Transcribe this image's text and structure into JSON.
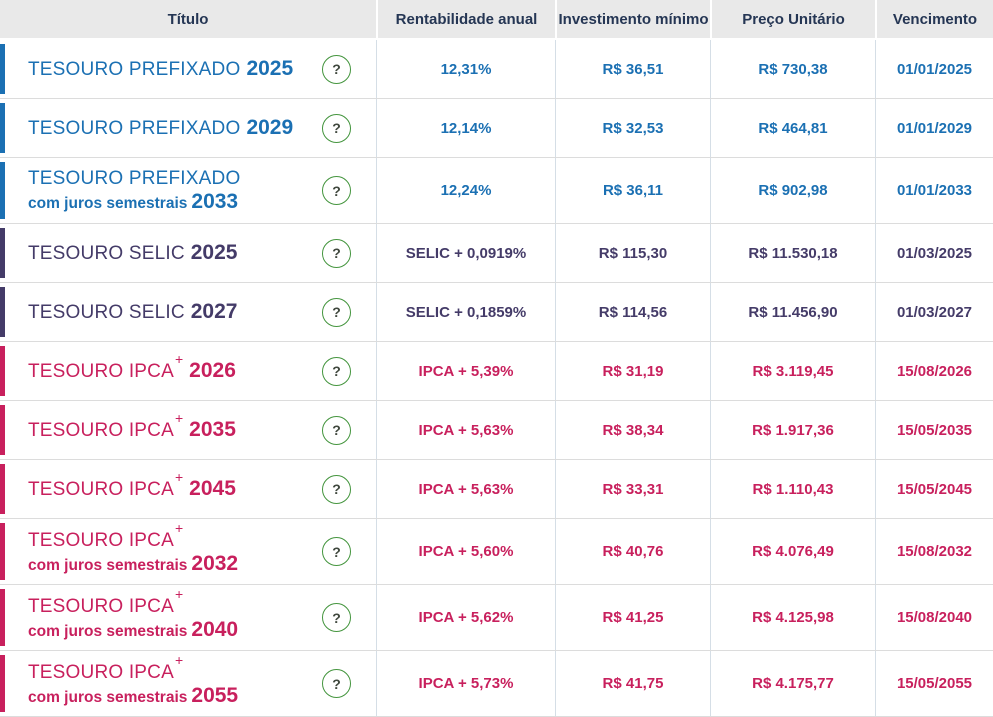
{
  "table": {
    "columns": [
      {
        "label": "Título"
      },
      {
        "label": "Rentabilidade anual"
      },
      {
        "label": "Investimento mínimo"
      },
      {
        "label": "Preço Unitário"
      },
      {
        "label": "Vencimento"
      }
    ],
    "rows": [
      {
        "category": "prefixado",
        "name": "TESOURO PREFIXADO",
        "sup": "",
        "subtitle": "",
        "year": "2025",
        "rate": "12,31%",
        "min_investment": "R$ 36,51",
        "unit_price": "R$ 730,38",
        "maturity": "01/01/2025"
      },
      {
        "category": "prefixado",
        "name": "TESOURO PREFIXADO",
        "sup": "",
        "subtitle": "",
        "year": "2029",
        "rate": "12,14%",
        "min_investment": "R$ 32,53",
        "unit_price": "R$ 464,81",
        "maturity": "01/01/2029"
      },
      {
        "category": "prefixado",
        "name": "TESOURO PREFIXADO",
        "sup": "",
        "subtitle": "com juros semestrais",
        "year": "2033",
        "rate": "12,24%",
        "min_investment": "R$ 36,11",
        "unit_price": "R$ 902,98",
        "maturity": "01/01/2033"
      },
      {
        "category": "selic",
        "name": "TESOURO SELIC",
        "sup": "",
        "subtitle": "",
        "year": "2025",
        "rate": "SELIC + 0,0919%",
        "min_investment": "R$ 115,30",
        "unit_price": "R$ 11.530,18",
        "maturity": "01/03/2025"
      },
      {
        "category": "selic",
        "name": "TESOURO SELIC",
        "sup": "",
        "subtitle": "",
        "year": "2027",
        "rate": "SELIC + 0,1859%",
        "min_investment": "R$ 114,56",
        "unit_price": "R$ 11.456,90",
        "maturity": "01/03/2027"
      },
      {
        "category": "ipca",
        "name": "TESOURO IPCA",
        "sup": "+",
        "subtitle": "",
        "year": "2026",
        "rate": "IPCA + 5,39%",
        "min_investment": "R$ 31,19",
        "unit_price": "R$ 3.119,45",
        "maturity": "15/08/2026"
      },
      {
        "category": "ipca",
        "name": "TESOURO IPCA",
        "sup": "+",
        "subtitle": "",
        "year": "2035",
        "rate": "IPCA + 5,63%",
        "min_investment": "R$ 38,34",
        "unit_price": "R$ 1.917,36",
        "maturity": "15/05/2035"
      },
      {
        "category": "ipca",
        "name": "TESOURO IPCA",
        "sup": "+",
        "subtitle": "",
        "year": "2045",
        "rate": "IPCA + 5,63%",
        "min_investment": "R$ 33,31",
        "unit_price": "R$ 1.110,43",
        "maturity": "15/05/2045"
      },
      {
        "category": "ipca",
        "name": "TESOURO IPCA",
        "sup": "+",
        "subtitle": "com juros semestrais",
        "year": "2032",
        "rate": "IPCA + 5,60%",
        "min_investment": "R$ 40,76",
        "unit_price": "R$ 4.076,49",
        "maturity": "15/08/2032"
      },
      {
        "category": "ipca",
        "name": "TESOURO IPCA",
        "sup": "+",
        "subtitle": "com juros semestrais",
        "year": "2040",
        "rate": "IPCA + 5,62%",
        "min_investment": "R$ 41,25",
        "unit_price": "R$ 4.125,98",
        "maturity": "15/08/2040"
      },
      {
        "category": "ipca",
        "name": "TESOURO IPCA",
        "sup": "+",
        "subtitle": "com juros semestrais",
        "year": "2055",
        "rate": "IPCA + 5,73%",
        "min_investment": "R$ 41,75",
        "unit_price": "R$ 4.175,77",
        "maturity": "15/05/2055"
      }
    ]
  },
  "icons": {
    "help_glyph": "?"
  },
  "colors": {
    "prefixado": "#1b70b3",
    "selic": "#443b68",
    "ipca": "#c8205d",
    "help_border": "#44953e",
    "header_text": "#253654",
    "header_bg": "#e9e9e9"
  }
}
